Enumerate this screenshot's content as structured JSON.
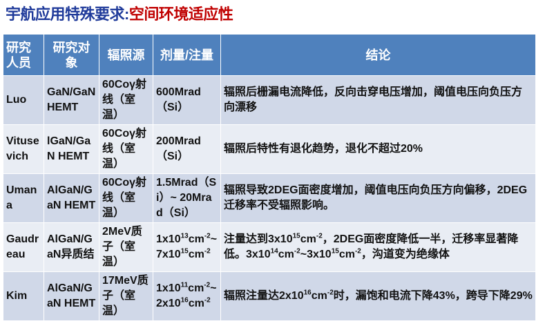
{
  "title": {
    "part1": "宇航应用特殊要求:",
    "part2": "空间环境适应性"
  },
  "colors": {
    "title_blue": "#1F3A9A",
    "title_red": "#C00000",
    "header_bg": "#4F81BD",
    "row_dark": "#D0D8E8",
    "row_light": "#E9EDF4"
  },
  "table": {
    "headers": [
      "研究人员",
      "研究对象",
      "辐照源",
      "剂量/注量",
      "结论"
    ],
    "rows": [
      [
        "Luo",
        "GaN/GaN HEMT",
        "60Coγ射线（室温）",
        "600Mrad（Si）",
        "辐照后栅漏电流降低，反向击穿电压增加，阈值电压向负压方向漂移"
      ],
      [
        "Vitusevich",
        "lGaN/GaN HEMT",
        "60Coγ射线（室温）",
        "200Mrad（Si）",
        "辐照后特性有退化趋势，退化不超过20%"
      ],
      [
        "Umana",
        "AlGaN/GaN HEMT",
        "60Coγ射线（室温）",
        "1.5Mrad（Si）~ 20Mrad（Si）",
        "辐照导致2DEG面密度增加，阈值电压向负压方向偏移，2DEG迁移率不受辐照影响。"
      ],
      [
        "Gaudreau",
        "AlGaN/GaN异质结",
        "2MeV质子（室温）",
        [
          {
            "t": "1x10"
          },
          {
            "sup": "13"
          },
          {
            "t": "cm"
          },
          {
            "sup": "-2"
          },
          {
            "t": "~ 7x10"
          },
          {
            "sup": "15"
          },
          {
            "t": "cm"
          },
          {
            "sup": "-2"
          }
        ],
        [
          {
            "t": "注量达到3x10"
          },
          {
            "sup": "15"
          },
          {
            "t": "cm"
          },
          {
            "sup": "-2"
          },
          {
            "t": "，2DEG面密度降低一半，迁移率显著降低。3x10"
          },
          {
            "sup": "14"
          },
          {
            "t": "cm"
          },
          {
            "sup": "-2"
          },
          {
            "t": "~3x10"
          },
          {
            "sup": "15"
          },
          {
            "t": "cm"
          },
          {
            "sup": "-2"
          },
          {
            "t": "，沟道变为绝缘体"
          }
        ]
      ],
      [
        "Kim",
        "AlGaN/GaN HEMT",
        "17MeV质子（室温）",
        [
          {
            "t": "1x10"
          },
          {
            "sup": "11"
          },
          {
            "t": "cm"
          },
          {
            "sup": "-2"
          },
          {
            "t": "~ 2x10"
          },
          {
            "sup": "16"
          },
          {
            "t": "cm"
          },
          {
            "sup": "-2"
          }
        ],
        [
          {
            "t": "辐照注量达2x10"
          },
          {
            "sup": "16"
          },
          {
            "t": "cm"
          },
          {
            "sup": "-2"
          },
          {
            "t": "时，漏饱和电流下降43%，跨导下降29%"
          }
        ]
      ]
    ]
  }
}
